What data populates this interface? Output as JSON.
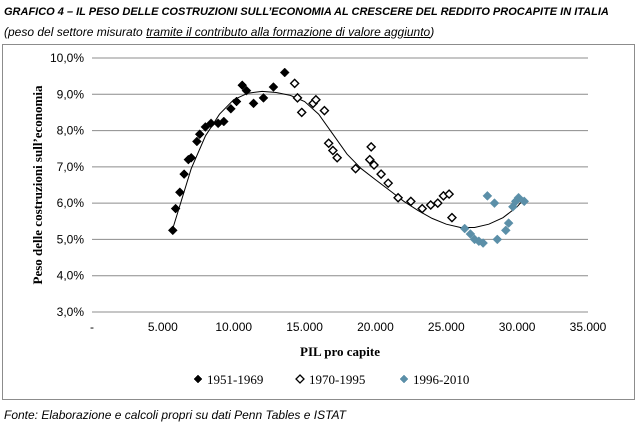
{
  "header": {
    "title": "GRAFICO 4 – IL PESO DELLE COSTRUZIONI SULL’ECONOMIA AL CRESCERE DEL REDDITO PROCAPITE IN ITALIA",
    "subtitle_pre": "(peso del settore misurato ",
    "subtitle_underlined": "tramite il contributo alla formazione di valore aggiunto",
    "subtitle_post": ")"
  },
  "footer": {
    "source": "Fonte: Elaborazione e calcoli propri su dati Penn Tables e ISTAT"
  },
  "chart_data": {
    "type": "scatter",
    "xlabel": "PIL pro capite",
    "ylabel": "Peso delle costruzioni sull’economia",
    "xlim": [
      0,
      35000
    ],
    "ylim": [
      3,
      10
    ],
    "x_ticks": [
      0,
      5000,
      10000,
      15000,
      20000,
      25000,
      30000,
      35000
    ],
    "x_tick_labels": [
      "-",
      "5.000",
      "10.000",
      "15.000",
      "20.000",
      "25.000",
      "30.000",
      "35.000"
    ],
    "y_ticks": [
      3,
      4,
      5,
      6,
      7,
      8,
      9,
      10
    ],
    "y_tick_labels": [
      "3,0%",
      "4,0%",
      "5,0%",
      "6,0%",
      "7,0%",
      "8,0%",
      "9,0%",
      "10,0%"
    ],
    "grid": "horizontal",
    "legend_position": "bottom",
    "series": [
      {
        "name": "1951-1969",
        "marker": "diamond-filled",
        "color": "#000000",
        "points": [
          [
            5700,
            5.25
          ],
          [
            5900,
            5.85
          ],
          [
            6200,
            6.3
          ],
          [
            6500,
            6.8
          ],
          [
            6800,
            7.2
          ],
          [
            7000,
            7.25
          ],
          [
            7400,
            7.7
          ],
          [
            7600,
            7.9
          ],
          [
            8000,
            8.1
          ],
          [
            8400,
            8.2
          ],
          [
            8900,
            8.2
          ],
          [
            9300,
            8.25
          ],
          [
            9800,
            8.6
          ],
          [
            10200,
            8.8
          ],
          [
            10600,
            9.25
          ],
          [
            10900,
            9.1
          ],
          [
            11400,
            8.75
          ],
          [
            12100,
            8.9
          ],
          [
            12800,
            9.2
          ],
          [
            13600,
            9.6
          ]
        ]
      },
      {
        "name": "1970-1995",
        "marker": "diamond-open",
        "color": "#000000",
        "points": [
          [
            14300,
            9.3
          ],
          [
            14500,
            8.9
          ],
          [
            14800,
            8.5
          ],
          [
            15600,
            8.75
          ],
          [
            15800,
            8.85
          ],
          [
            16400,
            8.55
          ],
          [
            16700,
            7.65
          ],
          [
            17000,
            7.45
          ],
          [
            17300,
            7.25
          ],
          [
            18600,
            6.95
          ],
          [
            19700,
            7.55
          ],
          [
            19600,
            7.2
          ],
          [
            19900,
            7.05
          ],
          [
            20400,
            6.8
          ],
          [
            20900,
            6.55
          ],
          [
            21600,
            6.15
          ],
          [
            22500,
            6.05
          ],
          [
            23300,
            5.85
          ],
          [
            23900,
            5.95
          ],
          [
            24400,
            6.0
          ],
          [
            24800,
            6.2
          ],
          [
            25200,
            6.25
          ],
          [
            25400,
            5.6
          ]
        ]
      },
      {
        "name": "1996-2010",
        "marker": "diamond-filled",
        "color": "#5b8fa8",
        "points": [
          [
            26300,
            5.3
          ],
          [
            26700,
            5.15
          ],
          [
            27000,
            5.0
          ],
          [
            27300,
            4.95
          ],
          [
            27600,
            4.9
          ],
          [
            27900,
            6.2
          ],
          [
            28400,
            6.0
          ],
          [
            28600,
            5.0
          ],
          [
            29200,
            5.25
          ],
          [
            29400,
            5.45
          ],
          [
            29700,
            5.9
          ],
          [
            29900,
            6.05
          ],
          [
            30100,
            6.15
          ],
          [
            30500,
            6.05
          ]
        ]
      }
    ],
    "trendline": {
      "type": "polynomial",
      "color": "#000000",
      "points": [
        [
          5700,
          5.3
        ],
        [
          7000,
          6.95
        ],
        [
          8000,
          7.85
        ],
        [
          9000,
          8.45
        ],
        [
          10000,
          8.85
        ],
        [
          11000,
          9.03
        ],
        [
          12000,
          9.08
        ],
        [
          13000,
          9.05
        ],
        [
          14000,
          8.97
        ],
        [
          15000,
          8.8
        ],
        [
          16000,
          8.45
        ],
        [
          17000,
          7.9
        ],
        [
          18000,
          7.35
        ],
        [
          19000,
          6.95
        ],
        [
          20000,
          6.65
        ],
        [
          21000,
          6.35
        ],
        [
          22000,
          6.05
        ],
        [
          23000,
          5.8
        ],
        [
          24000,
          5.58
        ],
        [
          25000,
          5.42
        ],
        [
          26000,
          5.33
        ],
        [
          27000,
          5.33
        ],
        [
          28000,
          5.42
        ],
        [
          29000,
          5.6
        ],
        [
          30000,
          5.9
        ],
        [
          30500,
          6.12
        ]
      ]
    }
  }
}
